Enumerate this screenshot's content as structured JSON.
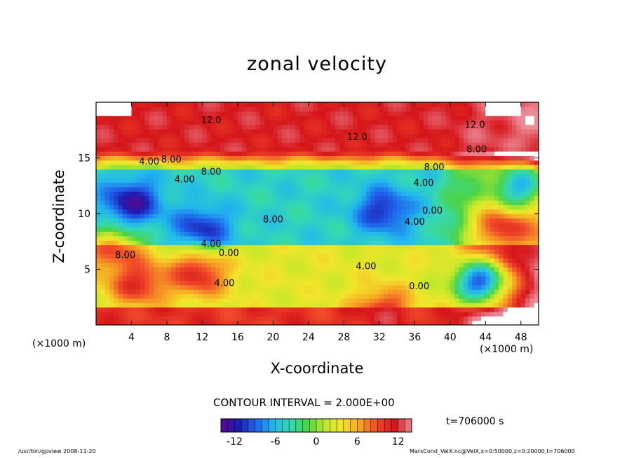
{
  "chart_data": {
    "type": "contour",
    "title": "zonal velocity",
    "xlabel": "X-coordinate",
    "ylabel": "Z-coordinate",
    "x_unit_left": "(×1000 m)",
    "x_unit_right": "(×1000 m)",
    "xlim": [
      0,
      50
    ],
    "ylim": [
      0,
      20
    ],
    "x_ticks": [
      4,
      8,
      12,
      16,
      20,
      24,
      28,
      32,
      36,
      40,
      44,
      48
    ],
    "y_ticks": [
      5,
      10,
      15
    ],
    "contour_interval_text": "CONTOUR INTERVAL = 2.000E+00",
    "contour_interval": 2.0,
    "time_text": "t=706000 s",
    "colorbar": {
      "range": [
        -14,
        14
      ],
      "ticks": [
        -12,
        -6,
        0,
        6,
        12
      ],
      "colormap": [
        "#5a0a88",
        "#1d1bb0",
        "#1f62ea",
        "#22b6ee",
        "#35d8b4",
        "#4cd446",
        "#c3e82a",
        "#f2e52a",
        "#f5a424",
        "#f0482a",
        "#d5151a",
        "#ec8a96"
      ]
    },
    "contour_labels": [
      {
        "text": "12.0",
        "x": 13.0,
        "z": 18.1
      },
      {
        "text": "12.0",
        "x": 29.5,
        "z": 16.6
      },
      {
        "text": "12.0",
        "x": 42.8,
        "z": 17.7
      },
      {
        "text": "8.00",
        "x": 43.0,
        "z": 15.5
      },
      {
        "text": "4.00",
        "x": 6.0,
        "z": 14.4
      },
      {
        "text": "8.00",
        "x": 8.5,
        "z": 14.6
      },
      {
        "text": "8.00",
        "x": 13.0,
        "z": 13.5
      },
      {
        "text": "4.00",
        "x": 10.0,
        "z": 12.8
      },
      {
        "text": "8.00",
        "x": 38.2,
        "z": 13.9
      },
      {
        "text": "4.00",
        "x": 37.0,
        "z": 12.5
      },
      {
        "text": "0.00",
        "x": 38.0,
        "z": 10.0
      },
      {
        "text": "4.00",
        "x": 36.0,
        "z": 9.0
      },
      {
        "text": "8.00",
        "x": 20.0,
        "z": 9.2
      },
      {
        "text": "4.00",
        "x": 13.0,
        "z": 7.0
      },
      {
        "text": "0.00",
        "x": 15.0,
        "z": 6.2
      },
      {
        "text": "8.00",
        "x": 3.3,
        "z": 6.0
      },
      {
        "text": "4.00",
        "x": 14.5,
        "z": 3.5
      },
      {
        "text": "4.00",
        "x": 30.5,
        "z": 5.0
      },
      {
        "text": "0.00",
        "x": 36.5,
        "z": 3.2
      }
    ],
    "features": [
      {
        "kind": "jet",
        "description": "strong eastward jet",
        "z_range": [
          15.5,
          20
        ],
        "max": 14
      },
      {
        "kind": "min",
        "x": 32.5,
        "z": 10.3,
        "value": -12
      },
      {
        "kind": "min",
        "x": 12.0,
        "z": 8.6,
        "value": -12
      },
      {
        "kind": "min",
        "x": 4.0,
        "z": 11.0,
        "value": -14
      },
      {
        "kind": "min",
        "x": 43.3,
        "z": 3.9,
        "value": -12
      },
      {
        "kind": "max",
        "x": 11.5,
        "z": 4.6,
        "value": 12
      },
      {
        "kind": "max",
        "x": 4.8,
        "z": 3.8,
        "value": 12
      },
      {
        "kind": "max",
        "x": 32.5,
        "z": 1.2,
        "value": 12
      },
      {
        "kind": "max",
        "x": 2.0,
        "z": 6.5,
        "value": 10
      },
      {
        "kind": "max",
        "x": 45.8,
        "z": 8.8,
        "value": 12
      },
      {
        "kind": "min",
        "x": 48.0,
        "z": 12.5,
        "value": -8
      }
    ]
  },
  "footer_left": "/usr/bin/gpview   2008-11-20",
  "footer_right": "MarsCond_VelX.nc@VelX,x=0:50000,z=0:20000,t=706000"
}
